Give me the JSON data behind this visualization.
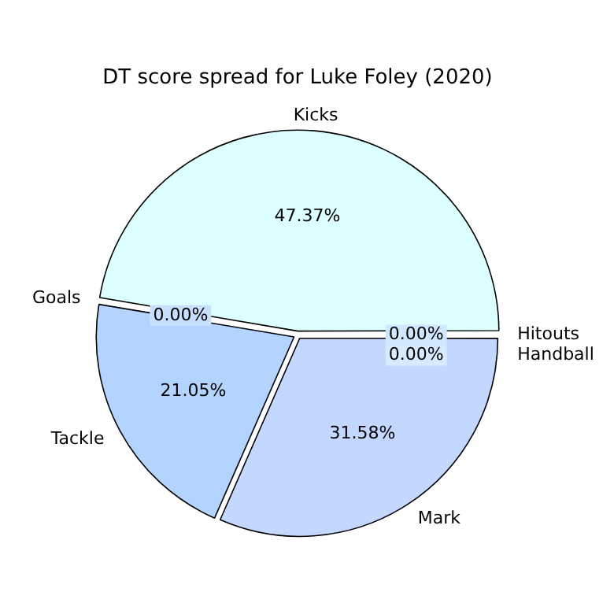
{
  "chart_data": {
    "type": "pie",
    "title": "DT score spread for Luke Foley (2020)",
    "categories": [
      "Mark",
      "Tackle",
      "Goals",
      "Kicks",
      "Hitouts",
      "Handball"
    ],
    "values": [
      31.58,
      21.05,
      0,
      47.37,
      0,
      0
    ],
    "value_labels": [
      "31.58%",
      "21.05%",
      "0.00%",
      "47.37%",
      "0.00%",
      "0.00%"
    ],
    "colors": [
      "#c4d8ff",
      "#b3d4ff",
      "#c8e0ff",
      "#dcffff",
      "#d0e8ff",
      "#d8eaff"
    ],
    "legend": false
  }
}
